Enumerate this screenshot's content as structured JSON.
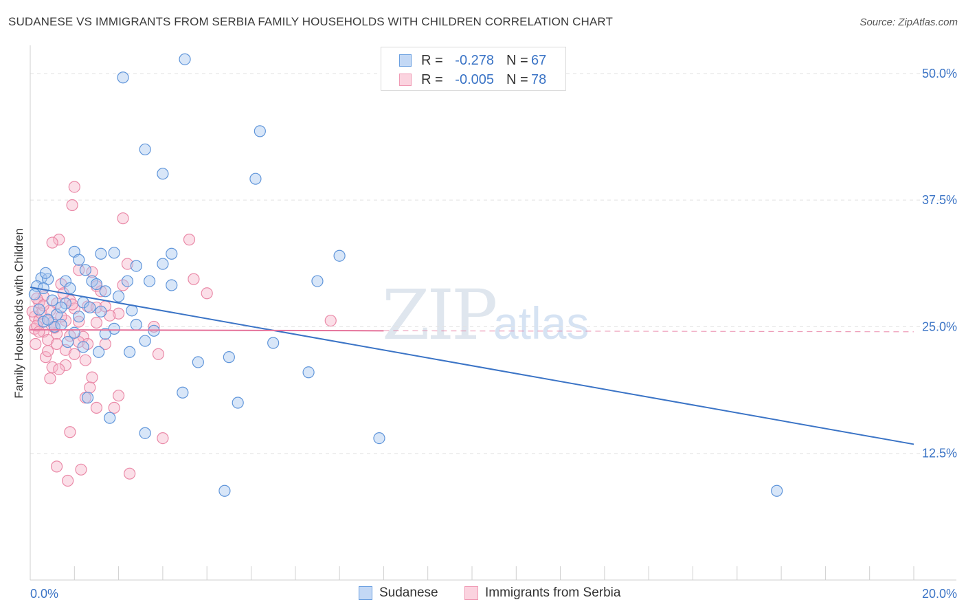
{
  "title": "SUDANESE VS IMMIGRANTS FROM SERBIA FAMILY HOUSEHOLDS WITH CHILDREN CORRELATION CHART",
  "source": "Source: ZipAtlas.com",
  "watermark": {
    "zip": "ZIP",
    "atlas": "atlas"
  },
  "stats": [
    {
      "r_label": "R =",
      "r_value": "-0.278",
      "n_label": "N =",
      "n_value": "67",
      "color": "#6a9fe0"
    },
    {
      "r_label": "R =",
      "r_value": "-0.005",
      "n_label": "N =",
      "n_value": "78",
      "color": "#f09ab4"
    }
  ],
  "legend": [
    {
      "label": "Sudanese",
      "color": "#6a9fe0"
    },
    {
      "label": "Immigrants from Serbia",
      "color": "#f09ab4"
    }
  ],
  "chart_data": {
    "type": "scatter",
    "title": "SUDANESE VS IMMIGRANTS FROM SERBIA FAMILY HOUSEHOLDS WITH CHILDREN CORRELATION CHART",
    "xlabel": "",
    "ylabel": "Family Households with Children",
    "xlim": [
      0,
      20
    ],
    "ylim": [
      0,
      52.5
    ],
    "x_tick_labels": [
      {
        "value": 0,
        "label": "0.0%"
      },
      {
        "value": 20,
        "label": "20.0%"
      }
    ],
    "y_tick_labels": [
      {
        "value": 12.5,
        "label": "12.5%"
      },
      {
        "value": 25.0,
        "label": "25.0%"
      },
      {
        "value": 37.5,
        "label": "37.5%"
      },
      {
        "value": 50.0,
        "label": "50.0%"
      }
    ],
    "series": [
      {
        "name": "Sudanese",
        "color": "#6a9fe0",
        "points": [
          [
            3.5,
            51.4
          ],
          [
            2.1,
            49.6
          ],
          [
            5.2,
            44.3
          ],
          [
            2.6,
            42.5
          ],
          [
            3.0,
            40.1
          ],
          [
            5.1,
            39.6
          ],
          [
            1.0,
            32.4
          ],
          [
            1.1,
            31.6
          ],
          [
            1.6,
            32.2
          ],
          [
            1.9,
            32.3
          ],
          [
            3.2,
            32.2
          ],
          [
            3.0,
            31.2
          ],
          [
            2.4,
            31.0
          ],
          [
            7.0,
            32.0
          ],
          [
            0.25,
            29.8
          ],
          [
            0.4,
            29.7
          ],
          [
            0.8,
            29.5
          ],
          [
            1.4,
            29.5
          ],
          [
            2.2,
            29.5
          ],
          [
            2.7,
            29.5
          ],
          [
            3.2,
            29.1
          ],
          [
            6.5,
            29.5
          ],
          [
            0.15,
            29.0
          ],
          [
            0.3,
            28.8
          ],
          [
            0.5,
            27.6
          ],
          [
            0.8,
            27.3
          ],
          [
            1.2,
            27.4
          ],
          [
            1.7,
            28.5
          ],
          [
            2.3,
            26.6
          ],
          [
            1.35,
            26.9
          ],
          [
            0.55,
            25.0
          ],
          [
            0.7,
            25.2
          ],
          [
            1.0,
            24.4
          ],
          [
            1.9,
            24.8
          ],
          [
            2.4,
            25.2
          ],
          [
            0.3,
            25.5
          ],
          [
            1.7,
            24.3
          ],
          [
            0.85,
            23.5
          ],
          [
            1.2,
            23.0
          ],
          [
            2.6,
            23.6
          ],
          [
            5.5,
            23.4
          ],
          [
            1.55,
            22.5
          ],
          [
            2.25,
            22.5
          ],
          [
            3.8,
            21.5
          ],
          [
            4.5,
            22.0
          ],
          [
            6.3,
            20.5
          ],
          [
            3.45,
            18.5
          ],
          [
            1.3,
            18.0
          ],
          [
            4.7,
            17.5
          ],
          [
            1.8,
            16.0
          ],
          [
            2.6,
            14.5
          ],
          [
            7.9,
            14.0
          ],
          [
            4.4,
            8.8
          ],
          [
            16.9,
            8.8
          ],
          [
            0.2,
            26.7
          ],
          [
            0.6,
            26.2
          ],
          [
            1.1,
            26.0
          ],
          [
            0.4,
            25.7
          ],
          [
            1.6,
            26.5
          ],
          [
            0.9,
            28.8
          ],
          [
            1.5,
            29.2
          ],
          [
            2.0,
            28.0
          ],
          [
            0.1,
            28.2
          ],
          [
            0.7,
            26.9
          ],
          [
            1.25,
            30.6
          ],
          [
            0.35,
            30.3
          ],
          [
            2.8,
            24.6
          ]
        ]
      },
      {
        "name": "Immigrants from Serbia",
        "color": "#f09ab4",
        "points": [
          [
            1.0,
            38.8
          ],
          [
            0.95,
            37.0
          ],
          [
            2.1,
            35.7
          ],
          [
            0.65,
            33.6
          ],
          [
            0.5,
            33.3
          ],
          [
            3.6,
            33.6
          ],
          [
            2.2,
            31.2
          ],
          [
            1.4,
            30.4
          ],
          [
            1.1,
            30.6
          ],
          [
            3.7,
            29.7
          ],
          [
            0.7,
            29.2
          ],
          [
            1.5,
            29.0
          ],
          [
            4.0,
            28.3
          ],
          [
            0.3,
            28.0
          ],
          [
            0.2,
            27.4
          ],
          [
            0.6,
            27.3
          ],
          [
            0.9,
            27.6
          ],
          [
            1.3,
            27.0
          ],
          [
            1.5,
            26.9
          ],
          [
            1.7,
            27.0
          ],
          [
            2.0,
            26.3
          ],
          [
            0.1,
            26.0
          ],
          [
            0.2,
            25.6
          ],
          [
            0.4,
            25.7
          ],
          [
            0.5,
            25.4
          ],
          [
            0.8,
            25.6
          ],
          [
            1.1,
            25.5
          ],
          [
            1.5,
            25.4
          ],
          [
            6.8,
            25.6
          ],
          [
            0.1,
            24.8
          ],
          [
            0.3,
            24.5
          ],
          [
            0.6,
            24.3
          ],
          [
            0.9,
            24.1
          ],
          [
            1.2,
            24.0
          ],
          [
            0.4,
            23.7
          ],
          [
            0.6,
            23.3
          ],
          [
            0.8,
            22.7
          ],
          [
            1.0,
            22.3
          ],
          [
            1.7,
            23.3
          ],
          [
            2.9,
            22.3
          ],
          [
            0.35,
            22.0
          ],
          [
            0.5,
            21.0
          ],
          [
            0.8,
            21.2
          ],
          [
            1.25,
            21.7
          ],
          [
            0.45,
            19.9
          ],
          [
            1.4,
            20.0
          ],
          [
            1.35,
            19.0
          ],
          [
            2.0,
            18.2
          ],
          [
            1.25,
            18.0
          ],
          [
            1.5,
            17.0
          ],
          [
            1.9,
            17.0
          ],
          [
            0.9,
            14.6
          ],
          [
            3.0,
            14.0
          ],
          [
            0.6,
            11.2
          ],
          [
            1.15,
            10.9
          ],
          [
            2.25,
            10.5
          ],
          [
            0.85,
            9.8
          ],
          [
            0.15,
            27.8
          ],
          [
            0.25,
            26.3
          ],
          [
            0.7,
            26.0
          ],
          [
            1.0,
            26.8
          ],
          [
            1.8,
            26.1
          ],
          [
            0.15,
            25.1
          ],
          [
            0.55,
            24.9
          ],
          [
            0.2,
            24.5
          ],
          [
            0.45,
            26.6
          ],
          [
            1.6,
            28.5
          ],
          [
            2.8,
            25.0
          ],
          [
            0.75,
            28.3
          ],
          [
            1.1,
            23.5
          ],
          [
            0.05,
            26.5
          ],
          [
            0.3,
            27.1
          ],
          [
            0.12,
            23.3
          ],
          [
            0.4,
            22.6
          ],
          [
            0.65,
            20.8
          ],
          [
            1.3,
            23.3
          ],
          [
            2.1,
            29.1
          ],
          [
            0.95,
            27.2
          ]
        ]
      }
    ],
    "trend_lines": [
      {
        "series": "Sudanese",
        "x": [
          0,
          20
        ],
        "y": [
          28.9,
          13.4
        ],
        "style": "solid"
      },
      {
        "series": "Immigrants from Serbia",
        "x": [
          0,
          8
        ],
        "y": [
          24.7,
          24.6
        ],
        "style": "solid"
      },
      {
        "series": "Immigrants from Serbia",
        "x": [
          8,
          20
        ],
        "y": [
          24.6,
          24.5
        ],
        "style": "dashed"
      }
    ]
  }
}
